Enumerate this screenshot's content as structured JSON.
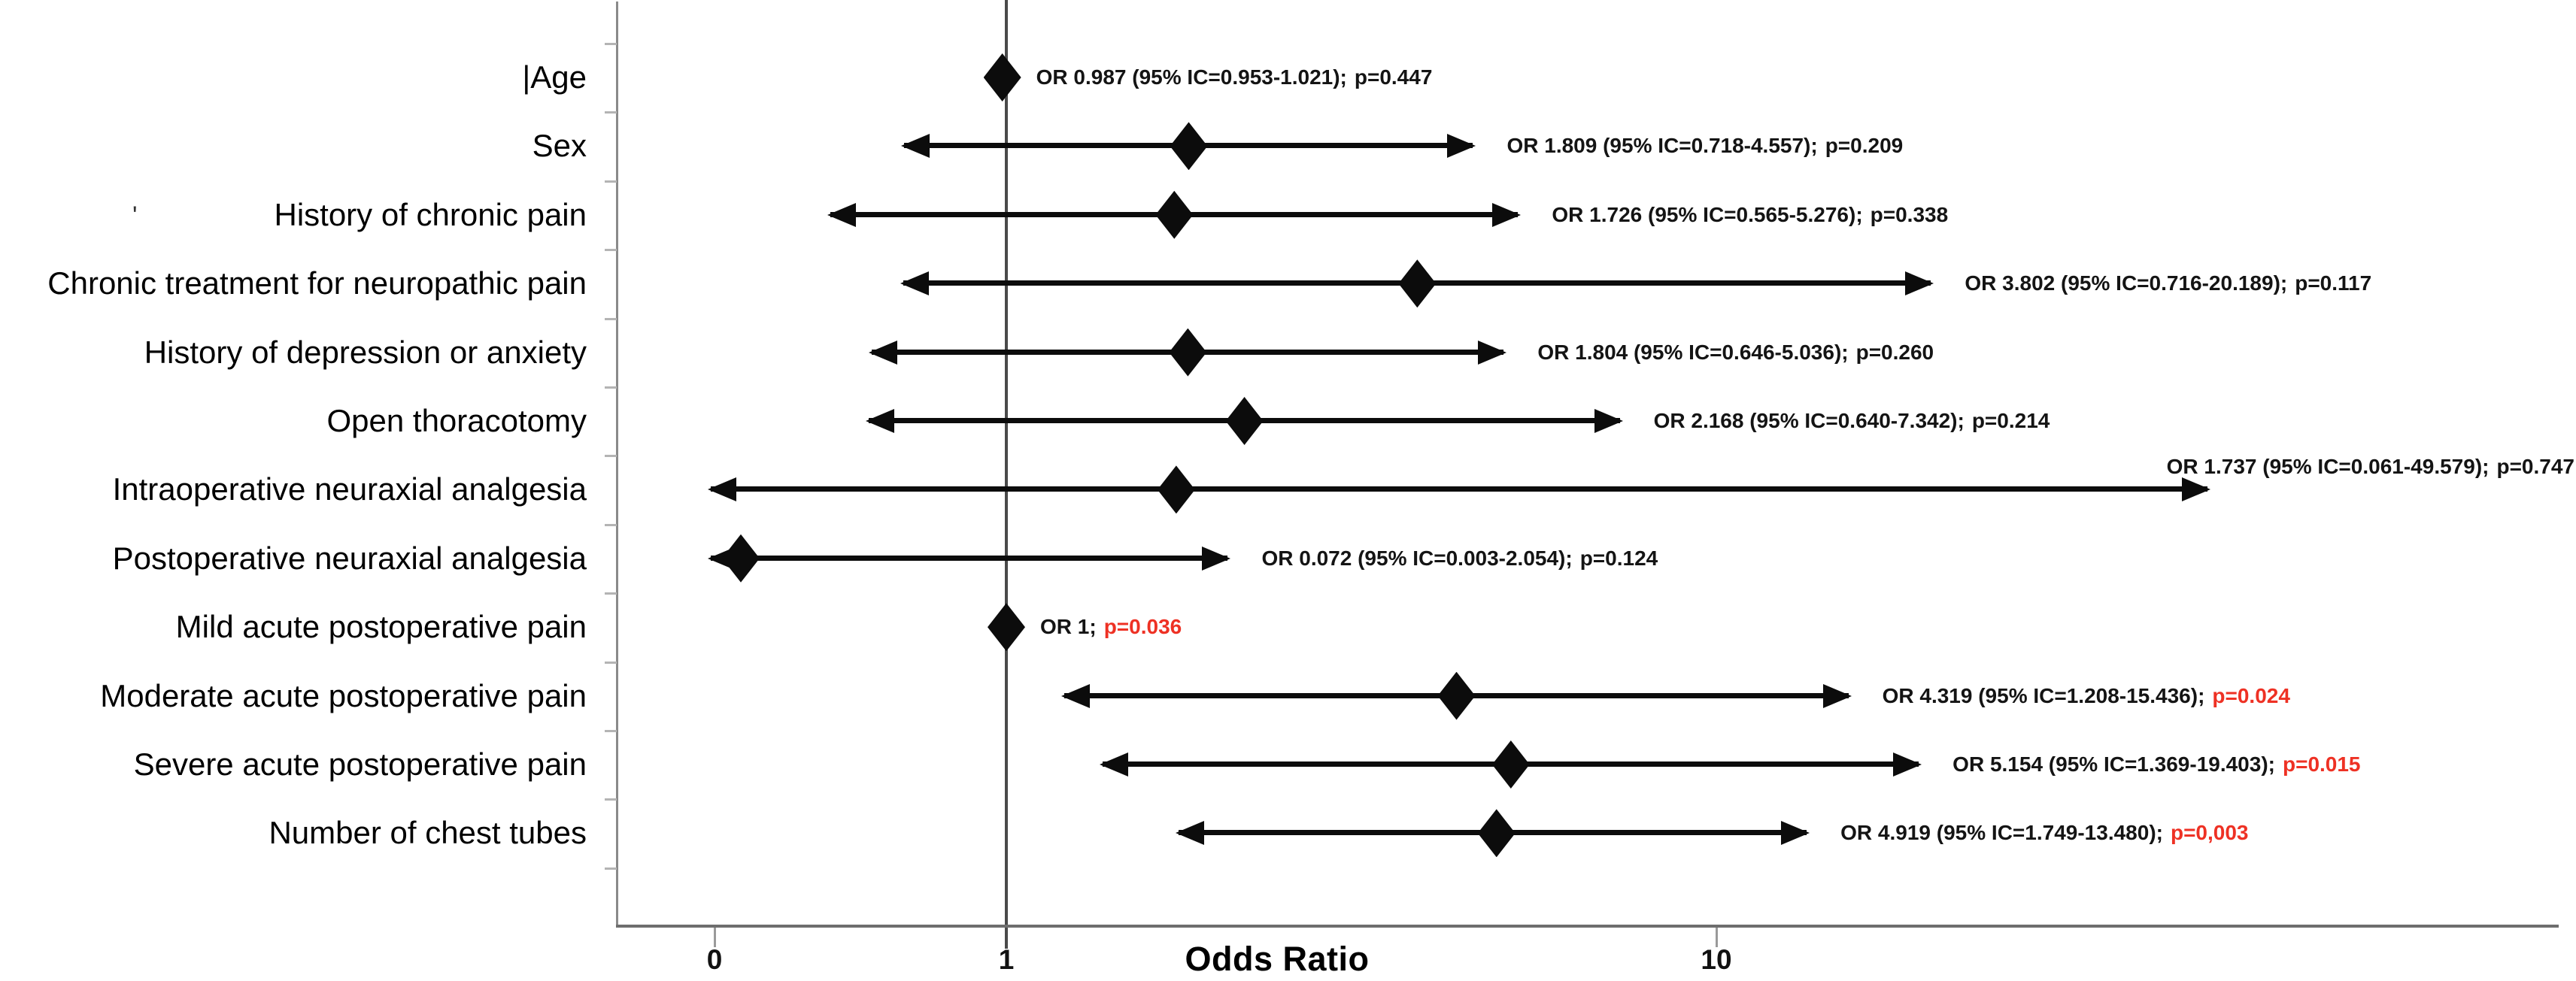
{
  "chart_data": {
    "type": "scatter",
    "variant": "forest-plot",
    "title": "",
    "xlabel": "Odds Ratio",
    "x_scale": "log10",
    "x_tick_labels": [
      "0",
      "1",
      "10"
    ],
    "grid": false,
    "legend": false,
    "colors": {
      "marker": "#0c0c0c",
      "significant_p": "#ee3124",
      "text": "#141414"
    },
    "rows": [
      {
        "label": "Age",
        "label_prefix": "|",
        "or": 0.987,
        "ci_lo": 0.953,
        "ci_hi": 1.021,
        "p": 0.447,
        "or_text": "OR 0.987 (95% IC=0.953-1.021);",
        "p_text": "p=0.447",
        "p_red": false
      },
      {
        "label": "Sex",
        "or": 1.809,
        "ci_lo": 0.718,
        "ci_hi": 4.557,
        "p": 0.209,
        "or_text": "OR 1.809 (95% IC=0.718-4.557);",
        "p_text": "p=0.209",
        "p_red": false
      },
      {
        "label": "History of chronic pain",
        "or": 1.726,
        "ci_lo": 0.565,
        "ci_hi": 5.276,
        "p": 0.338,
        "or_text": "OR 1.726 (95% IC=0.565-5.276);",
        "p_text": "p=0.338",
        "p_red": false
      },
      {
        "label": "Chronic treatment for neuropathic pain",
        "or": 3.802,
        "ci_lo": 0.716,
        "ci_hi": 20.189,
        "p": 0.117,
        "or_text": "OR 3.802 (95% IC=0.716-20.189);",
        "p_text": "p=0.117",
        "p_red": false
      },
      {
        "label": "History of depression or anxiety",
        "or": 1.804,
        "ci_lo": 0.646,
        "ci_hi": 5.036,
        "p": 0.26,
        "or_text": "OR 1.804 (95% IC=0.646-5.036);",
        "p_text": "p=0.260",
        "p_red": false
      },
      {
        "label": "Open thoracotomy",
        "or": 2.168,
        "ci_lo": 0.64,
        "ci_hi": 7.342,
        "p": 0.214,
        "or_text": "OR 2.168 (95% IC=0.640-7.342);",
        "p_text": "p=0.214",
        "p_red": false
      },
      {
        "label": "Intraoperative neuraxial analgesia",
        "or": 1.737,
        "ci_lo": 0.061,
        "ci_hi": 49.579,
        "p": 0.747,
        "or_text": "OR 1.737 (95% IC=0.061-49.579);",
        "p_text": "p=0.747",
        "p_red": false
      },
      {
        "label": "Postoperative neuraxial analgesia",
        "or": 0.072,
        "ci_lo": 0.003,
        "ci_hi": 2.054,
        "p": 0.124,
        "or_text": "OR 0.072 (95% IC=0.003-2.054);",
        "p_text": "p=0.124",
        "p_red": false
      },
      {
        "label": "Mild acute postoperative pain",
        "or": 1,
        "ci_lo": null,
        "ci_hi": null,
        "p": 0.036,
        "or_text": "OR 1;",
        "p_text": "p=0.036",
        "p_red": true
      },
      {
        "label": "Moderate acute postoperative pain",
        "or": 4.319,
        "ci_lo": 1.208,
        "ci_hi": 15.436,
        "p": 0.024,
        "or_text": "OR 4.319 (95% IC=1.208-15.436);",
        "p_text": "p=0.024",
        "p_red": true
      },
      {
        "label": "Severe acute postoperative pain",
        "or": 5.154,
        "ci_lo": 1.369,
        "ci_hi": 19.403,
        "p": 0.015,
        "or_text": "OR 5.154 (95% IC=1.369-19.403);",
        "p_text": "p=0.015",
        "p_red": true
      },
      {
        "label": "Number of chest tubes",
        "or": 4.919,
        "ci_lo": 1.749,
        "ci_hi": 13.48,
        "p": 0.003,
        "or_text": "OR 4.919 (95% IC=1.749-13.480);",
        "p_text": "p=0,003",
        "p_red": true
      }
    ]
  },
  "artifacts": {
    "stray_mark": "'"
  }
}
